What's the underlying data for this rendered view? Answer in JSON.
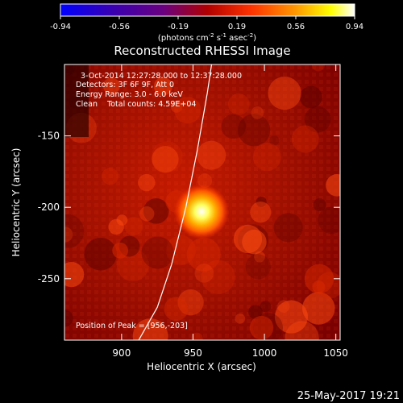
{
  "colorbar": {
    "ticks": [
      "-0.94",
      "-0.56",
      "-0.19",
      "0.19",
      "0.56",
      "0.94"
    ],
    "units_prefix": "(photons cm",
    "units_exp1": "-2",
    "units_mid": " s",
    "units_exp2": "-1",
    "units_mid2": " asec",
    "units_exp3": "-2",
    "units_suffix": ")",
    "colors": [
      "#0000ff",
      "#3a00b0",
      "#6a0080",
      "#b00000",
      "#ff3300",
      "#ff9900",
      "#ffff00",
      "#ffffff"
    ]
  },
  "chart_data": {
    "type": "heatmap",
    "title": "Reconstructed RHESSI Image",
    "xlabel": "Heliocentric X (arcsec)",
    "ylabel": "Heliocentric Y (arcsec)",
    "xlim": [
      860,
      1053
    ],
    "ylim": [
      -293,
      -100
    ],
    "xticks": [
      "900",
      "950",
      "1000",
      "1050"
    ],
    "yticks": [
      "-150",
      "-200",
      "-250"
    ],
    "annotations": {
      "line1": "3-Oct-2014 12:27:28.000 to 12:37:28.000",
      "line2": "Detectors: 3F 6F 9F, Att 0",
      "line3": "Energy Range: 3.0 - 6.0 keV",
      "line4": "Clean    Total counts: 4.59E+04",
      "peak": "Position of Peak = [956,-203]"
    },
    "peak": [
      956,
      -203
    ],
    "limb_curve": [
      [
        912,
        -293
      ],
      [
        925,
        -270
      ],
      [
        935,
        -240
      ],
      [
        945,
        -200
      ],
      [
        953,
        -160
      ],
      [
        960,
        -120
      ],
      [
        963,
        -100
      ]
    ]
  },
  "footer": {
    "timestamp": "25-May-2017 19:21"
  }
}
